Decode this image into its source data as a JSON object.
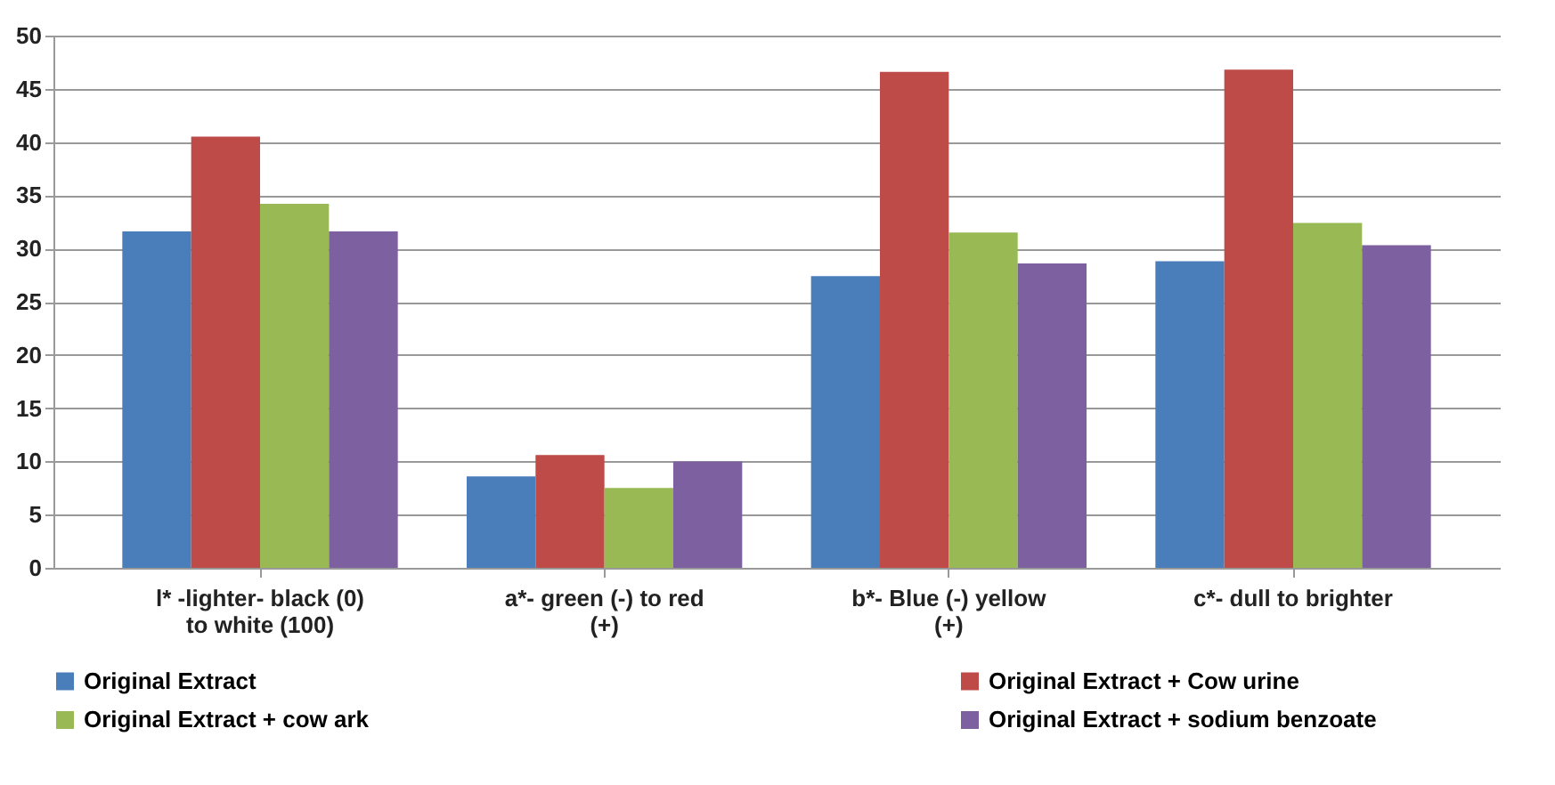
{
  "chart_data": {
    "type": "bar",
    "categories": [
      "l* -lighter- black (0) to white (100)",
      "a*- green (-) to red (+)",
      "b*- Blue (-) yellow (+)",
      "c*- dull to brighter"
    ],
    "series": [
      {
        "name": "Original Extract",
        "color": "#4a7ebb",
        "values": [
          31.6,
          8.6,
          27.4,
          28.8
        ]
      },
      {
        "name": "Original Extract + Cow urine",
        "color": "#be4b48",
        "values": [
          40.5,
          10.6,
          46.6,
          46.8
        ]
      },
      {
        "name": "Original Extract + cow ark",
        "color": "#98b954",
        "values": [
          34.2,
          7.5,
          31.5,
          32.4
        ]
      },
      {
        "name": "Original Extract + sodium benzoate",
        "color": "#7d60a0",
        "values": [
          31.6,
          10.0,
          28.6,
          30.3
        ]
      }
    ],
    "ylim": [
      0,
      50
    ],
    "yticks": [
      0,
      5,
      10,
      15,
      20,
      25,
      30,
      35,
      40,
      45,
      50
    ],
    "grid": "y",
    "legend": "bottom"
  }
}
